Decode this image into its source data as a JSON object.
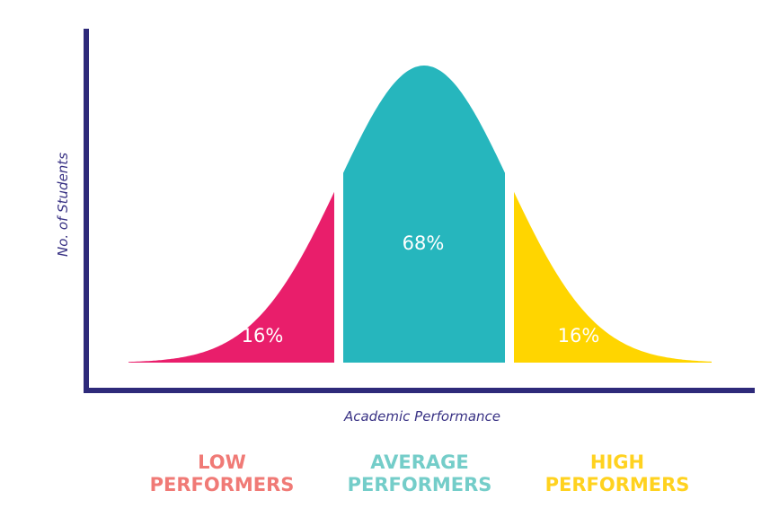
{
  "chart_data": {
    "type": "area",
    "xlabel": "Academic Performance",
    "ylabel": "No. of Students",
    "grid": false,
    "segments": [
      {
        "label": "16%",
        "value": 16,
        "color": "#e91e6b",
        "group_line1": "LOW",
        "group_line2": "PERFORMERS",
        "group_color": "#f07a76"
      },
      {
        "label": "68%",
        "value": 68,
        "color": "#26b6bd",
        "group_line1": "AVERAGE",
        "group_line2": "PERFORMERS",
        "group_color": "#74cdc9"
      },
      {
        "label": "16%",
        "value": 16,
        "color": "#ffd500",
        "group_line1": "HIGH",
        "group_line2": "PERFORMERS",
        "group_color": "#ffd21f"
      }
    ]
  },
  "colors": {
    "axis": "#2e2a7a",
    "axis_label": "#3a3385"
  }
}
